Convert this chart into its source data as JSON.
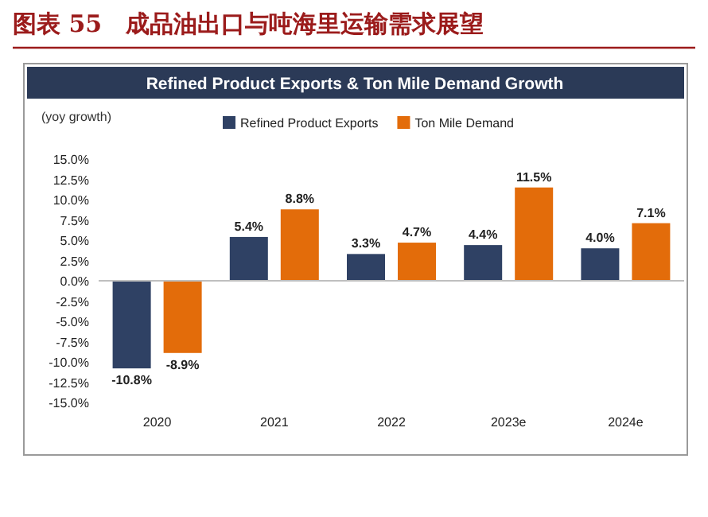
{
  "chart_data": {
    "type": "bar",
    "title": "图表 55　成品油出口与吨海里运输需求展望",
    "subtitle": "Refined Product Exports & Ton Mile Demand Growth",
    "ylabel": "(yoy growth)",
    "categories": [
      "2020",
      "2021",
      "2022",
      "2023e",
      "2024e"
    ],
    "series": [
      {
        "name": "Refined Product Exports",
        "color": "#2f4164",
        "values": [
          -10.8,
          5.4,
          3.3,
          4.4,
          4.0
        ],
        "value_labels": [
          "-10.8%",
          "5.4%",
          "3.3%",
          "4.4%",
          "4.0%"
        ]
      },
      {
        "name": "Ton Mile Demand",
        "color": "#e36c0a",
        "values": [
          -8.9,
          8.8,
          4.7,
          11.5,
          7.1
        ],
        "value_labels": [
          "-8.9%",
          "8.8%",
          "4.7%",
          "11.5%",
          "7.1%"
        ]
      }
    ],
    "ylim": [
      -15,
      15
    ],
    "yticks": [
      {
        "value": -15,
        "label": "-15.0%"
      },
      {
        "value": -12.5,
        "label": "-12.5%"
      },
      {
        "value": -10,
        "label": "-10.0%"
      },
      {
        "value": -7.5,
        "label": "-7.5%"
      },
      {
        "value": -5,
        "label": "-5.0%"
      },
      {
        "value": -2.5,
        "label": "-2.5%"
      },
      {
        "value": 0,
        "label": "0.0%"
      },
      {
        "value": 2.5,
        "label": "2.5%"
      },
      {
        "value": 5,
        "label": "5.0%"
      },
      {
        "value": 7.5,
        "label": "7.5%"
      },
      {
        "value": 10,
        "label": "10.0%"
      },
      {
        "value": 12.5,
        "label": "12.5%"
      },
      {
        "value": 15,
        "label": "15.0%"
      }
    ],
    "legend": "top"
  }
}
